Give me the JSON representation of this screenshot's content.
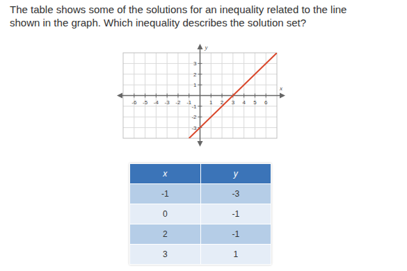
{
  "question": {
    "lines": [
      "The table shows some of the solutions for an inequality related to the line",
      "shown in the graph. Which inequality describes the solution set?"
    ]
  },
  "chart_data": {
    "type": "line",
    "x_label": "x",
    "y_label": "y",
    "series": [
      {
        "x": [
          -1,
          7
        ],
        "values": [
          -4,
          4
        ],
        "color": "#d9472b"
      }
    ],
    "xlim": [
      -7,
      7
    ],
    "ylim": [
      -4,
      4
    ],
    "xticks": [
      -6,
      -5,
      -4,
      -3,
      -2,
      -1,
      1,
      2,
      3,
      4,
      5,
      6
    ],
    "yticks": [
      -3,
      -2,
      -1,
      1,
      2,
      3
    ],
    "grid": true
  },
  "table": {
    "header": [
      "x",
      "y"
    ],
    "rows": [
      [
        -1,
        -3
      ],
      [
        0,
        -1
      ],
      [
        2,
        -1
      ],
      [
        3,
        1
      ]
    ]
  }
}
